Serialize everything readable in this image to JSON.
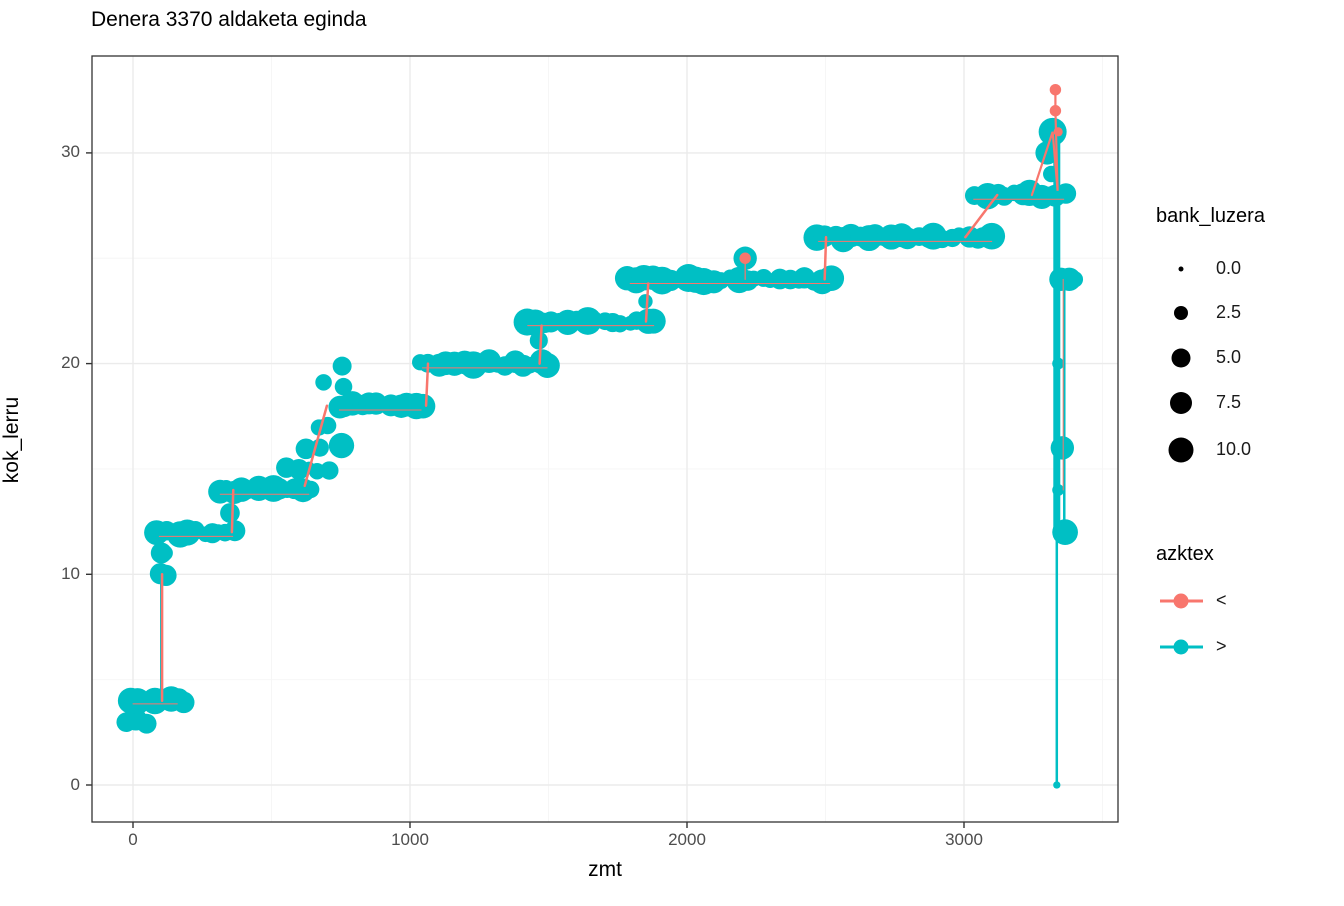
{
  "title": "Denera 3370 aldaketa eginda",
  "chart_data": {
    "type": "scatter",
    "title": "Denera 3370 aldaketa eginda",
    "xlabel": "zmt",
    "ylabel": "kok_lerru",
    "x_ticks": [
      "0",
      "1000",
      "2000",
      "3000"
    ],
    "y_ticks": [
      "0",
      "10",
      "20",
      "30"
    ],
    "x_tick_values": [
      0,
      1000,
      2000,
      3000
    ],
    "y_tick_values": [
      0,
      10,
      20,
      30
    ],
    "x_minor_values": [
      500,
      1500,
      2500,
      3500
    ],
    "y_minor_values": [
      5,
      15,
      25
    ],
    "xlim": [
      -148,
      3556
    ],
    "ylim": [
      -1.75,
      34.6
    ],
    "grid": true,
    "legend_position": "right",
    "colors": {
      "less": "#F8766D",
      "greater": "#00BFC4",
      "grid_major": "#EBEBEB",
      "grid_minor": "#F5F5F5",
      "panel_border": "#333333"
    },
    "size_legend": {
      "title": "bank_luzera",
      "labels": [
        "0.0",
        "2.5",
        "5.0",
        "7.5",
        "10.0"
      ],
      "values": [
        0,
        2.5,
        5,
        7.5,
        10
      ]
    },
    "shape_legend": {
      "title": "azktex",
      "entries": [
        {
          "label": "<",
          "color": "#F8766D"
        },
        {
          "label": ">",
          "color": "#00BFC4"
        }
      ]
    },
    "series": {
      "teal_runs_comment": "step plateaus of '>' points: [x_start, x_end, kok_lerru, n_points, size_min, size_max]",
      "teal_runs": [
        [
          -20,
          50,
          3,
          3,
          6,
          10
        ],
        [
          -15,
          190,
          4,
          8,
          4,
          10
        ],
        [
          95,
          118,
          10,
          2,
          5,
          8
        ],
        [
          100,
          120,
          11,
          2,
          4,
          7
        ],
        [
          90,
          365,
          12,
          11,
          4,
          10
        ],
        [
          350,
          360,
          13,
          1,
          5,
          7
        ],
        [
          310,
          640,
          14,
          13,
          4,
          10
        ],
        [
          555,
          700,
          15,
          5,
          3,
          7
        ],
        [
          630,
          745,
          16,
          3,
          4,
          9
        ],
        [
          670,
          700,
          17,
          2,
          4,
          7
        ],
        [
          688,
          700,
          19,
          1,
          4,
          6
        ],
        [
          760,
          770,
          19,
          1,
          4,
          6
        ],
        [
          755,
          762,
          20,
          1,
          5,
          7
        ],
        [
          740,
          1045,
          18,
          12,
          4,
          10
        ],
        [
          1040,
          1500,
          20,
          16,
          4,
          10
        ],
        [
          1465,
          1475,
          21,
          1,
          4,
          6
        ],
        [
          1420,
          1885,
          22,
          16,
          4,
          10
        ],
        [
          1850,
          1860,
          23,
          1,
          4,
          6
        ],
        [
          1790,
          2520,
          24,
          25,
          4,
          10
        ],
        [
          2470,
          3105,
          26,
          22,
          4,
          10
        ],
        [
          3030,
          3365,
          28,
          12,
          4,
          10
        ]
      ],
      "teal_points_comment": "[zmt, kok_lerru, bank_luzera]",
      "teal_points": [
        [
          2210,
          25,
          8
        ],
        [
          3300,
          30,
          8
        ],
        [
          3315,
          29,
          5
        ],
        [
          3320,
          31,
          10
        ],
        [
          3350,
          24,
          8
        ],
        [
          3380,
          24,
          8
        ],
        [
          3400,
          24,
          5
        ],
        [
          3340,
          20,
          3
        ],
        [
          3355,
          16,
          8
        ],
        [
          3340,
          14,
          3
        ],
        [
          3365,
          12,
          9
        ],
        [
          3335,
          0,
          1
        ]
      ],
      "red_points": [
        [
          3330,
          33,
          1.5
        ],
        [
          3330,
          32,
          1.5
        ],
        [
          3340,
          31,
          0.5
        ],
        [
          2210,
          25,
          1.5
        ]
      ],
      "teal_lines": [
        {
          "pts": [
            [
              103,
              4
            ],
            [
              103,
              10
            ]
          ],
          "w": 3
        },
        {
          "pts": [
            [
              3335,
              31
            ],
            [
              3335,
              12
            ]
          ],
          "w": 7
        },
        {
          "pts": [
            [
              3335,
              12
            ],
            [
              3335,
              0
            ]
          ],
          "w": 2.5
        },
        {
          "pts": [
            [
              3362,
              24
            ],
            [
              3362,
              12
            ]
          ],
          "w": 2.5
        },
        {
          "pts": [
            [
              95,
              12.1
            ],
            [
              360,
              12.1
            ]
          ],
          "w": 1
        },
        {
          "pts": [
            [
              315,
              13.9
            ],
            [
              635,
              13.9
            ]
          ],
          "w": 1
        },
        {
          "pts": [
            [
              745,
              17.9
            ],
            [
              1040,
              17.9
            ]
          ],
          "w": 1
        },
        {
          "pts": [
            [
              1045,
              19.9
            ],
            [
              1495,
              19.9
            ]
          ],
          "w": 1
        },
        {
          "pts": [
            [
              1425,
              21.9
            ],
            [
              1880,
              21.9
            ]
          ],
          "w": 1
        },
        {
          "pts": [
            [
              1795,
              23.9
            ],
            [
              2515,
              23.9
            ]
          ],
          "w": 1
        },
        {
          "pts": [
            [
              2475,
              25.9
            ],
            [
              3100,
              25.9
            ]
          ],
          "w": 1
        },
        {
          "pts": [
            [
              3035,
              27.9
            ],
            [
              3360,
              27.9
            ]
          ],
          "w": 1
        }
      ],
      "red_lines": [
        {
          "pts": [
            [
              105,
              4
            ],
            [
              105,
              10
            ]
          ],
          "w": 2.5
        },
        {
          "pts": [
            [
              357,
              12
            ],
            [
              362,
              14
            ]
          ],
          "w": 2.5
        },
        {
          "pts": [
            [
              620,
              14.2
            ],
            [
              700,
              18
            ]
          ],
          "w": 2.5
        },
        {
          "pts": [
            [
              1058,
              18
            ],
            [
              1065,
              20
            ]
          ],
          "w": 2.5
        },
        {
          "pts": [
            [
              1468,
              20
            ],
            [
              1475,
              21.8
            ]
          ],
          "w": 2.5
        },
        {
          "pts": [
            [
              1852,
              22
            ],
            [
              1860,
              23.8
            ]
          ],
          "w": 2.5
        },
        {
          "pts": [
            [
              2210,
              25
            ],
            [
              2210,
              24
            ]
          ],
          "w": 1.2
        },
        {
          "pts": [
            [
              2497,
              24
            ],
            [
              2502,
              26
            ]
          ],
          "w": 2.5
        },
        {
          "pts": [
            [
              3005,
              26
            ],
            [
              3120,
              28
            ]
          ],
          "w": 2.5
        },
        {
          "pts": [
            [
              3245,
              28
            ],
            [
              3320,
              31
            ],
            [
              3338,
              28.2
            ],
            [
              3330,
              32
            ],
            [
              3330,
              33
            ]
          ],
          "w": 2.2
        },
        {
          "pts": [
            [
              3358,
              24
            ],
            [
              3358,
              14
            ]
          ],
          "w": 1
        },
        {
          "pts": [
            [
              95,
              11.8
            ],
            [
              360,
              11.8
            ]
          ],
          "w": 1
        },
        {
          "pts": [
            [
              315,
              13.8
            ],
            [
              635,
              13.8
            ]
          ],
          "w": 1
        },
        {
          "pts": [
            [
              0,
              3.85
            ],
            [
              160,
              3.85
            ]
          ],
          "w": 1
        },
        {
          "pts": [
            [
              745,
              17.8
            ],
            [
              1040,
              17.8
            ]
          ],
          "w": 1
        },
        {
          "pts": [
            [
              1045,
              19.8
            ],
            [
              1495,
              19.8
            ]
          ],
          "w": 1
        },
        {
          "pts": [
            [
              1425,
              21.8
            ],
            [
              1880,
              21.8
            ]
          ],
          "w": 1
        },
        {
          "pts": [
            [
              1795,
              23.8
            ],
            [
              2515,
              23.8
            ]
          ],
          "w": 1
        },
        {
          "pts": [
            [
              2475,
              25.8
            ],
            [
              3100,
              25.8
            ]
          ],
          "w": 1
        },
        {
          "pts": [
            [
              3035,
              27.8
            ],
            [
              3360,
              27.8
            ]
          ],
          "w": 1
        }
      ]
    }
  }
}
